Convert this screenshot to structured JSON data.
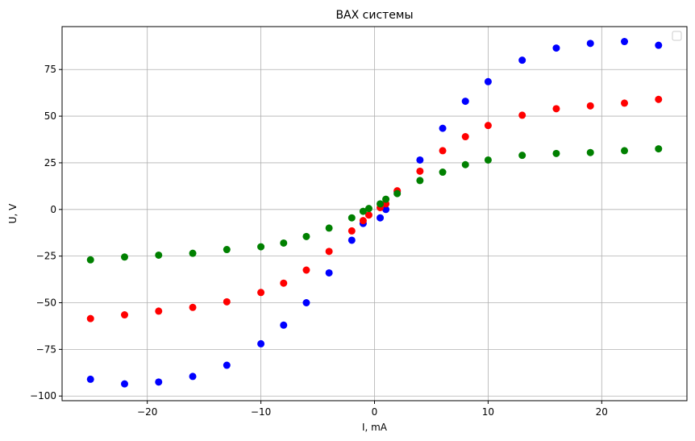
{
  "chart_data": {
    "type": "scatter",
    "title": "ВАХ системы",
    "xlabel": "I, mA",
    "ylabel": "U, V",
    "xlim": [
      -27.5,
      27.5
    ],
    "ylim": [
      -102.5,
      98.0
    ],
    "xticks": [
      -20,
      -10,
      0,
      10,
      20
    ],
    "yticks": [
      -100,
      -75,
      -50,
      -25,
      0,
      25,
      50,
      75
    ],
    "xtick_labels": [
      "−20",
      "−10",
      "0",
      "10",
      "20"
    ],
    "ytick_labels": [
      "−100",
      "−75",
      "−50",
      "−25",
      "0",
      "25",
      "50",
      "75"
    ],
    "grid": true,
    "legend": {
      "placement": "top-right",
      "entries": []
    },
    "series": [
      {
        "color": "#0000ff",
        "x": [
          -25,
          -22,
          -19,
          -16,
          -13,
          -10,
          -8,
          -6,
          -4,
          -2,
          -1,
          0.5,
          1,
          2,
          4,
          6,
          8,
          10,
          13,
          16,
          19,
          22,
          25
        ],
        "y": [
          -91,
          -93.5,
          -92.5,
          -89.5,
          -83.5,
          -72,
          -62,
          -50,
          -34,
          -16.5,
          -7.5,
          -4.5,
          0,
          9.5,
          26.5,
          43.5,
          58,
          68.5,
          80,
          86.5,
          89,
          90,
          88
        ]
      },
      {
        "color": "#ff0000",
        "x": [
          -25,
          -22,
          -19,
          -16,
          -13,
          -10,
          -8,
          -6,
          -4,
          -2,
          -1,
          -0.5,
          0.5,
          1,
          2,
          4,
          6,
          8,
          10,
          13,
          16,
          19,
          22,
          25
        ],
        "y": [
          -58.5,
          -56.5,
          -54.5,
          -52.5,
          -49.5,
          -44.5,
          -39.5,
          -32.5,
          -22.5,
          -11.5,
          -6,
          -3,
          1,
          3,
          10,
          20.5,
          31.5,
          39,
          45,
          50.5,
          54,
          55.5,
          57,
          59
        ]
      },
      {
        "color": "#008000",
        "x": [
          -25,
          -22,
          -19,
          -16,
          -13,
          -10,
          -8,
          -6,
          -4,
          -2,
          -1,
          -0.5,
          0.5,
          1,
          2,
          4,
          6,
          8,
          10,
          13,
          16,
          19,
          22,
          25
        ],
        "y": [
          -27,
          -25.5,
          -24.5,
          -23.5,
          -21.5,
          -20,
          -18,
          -14.5,
          -10,
          -4.5,
          -1,
          0.5,
          3,
          5.5,
          8.5,
          15.5,
          20,
          24,
          26.5,
          29,
          30,
          30.5,
          31.5,
          32.5
        ]
      }
    ]
  }
}
